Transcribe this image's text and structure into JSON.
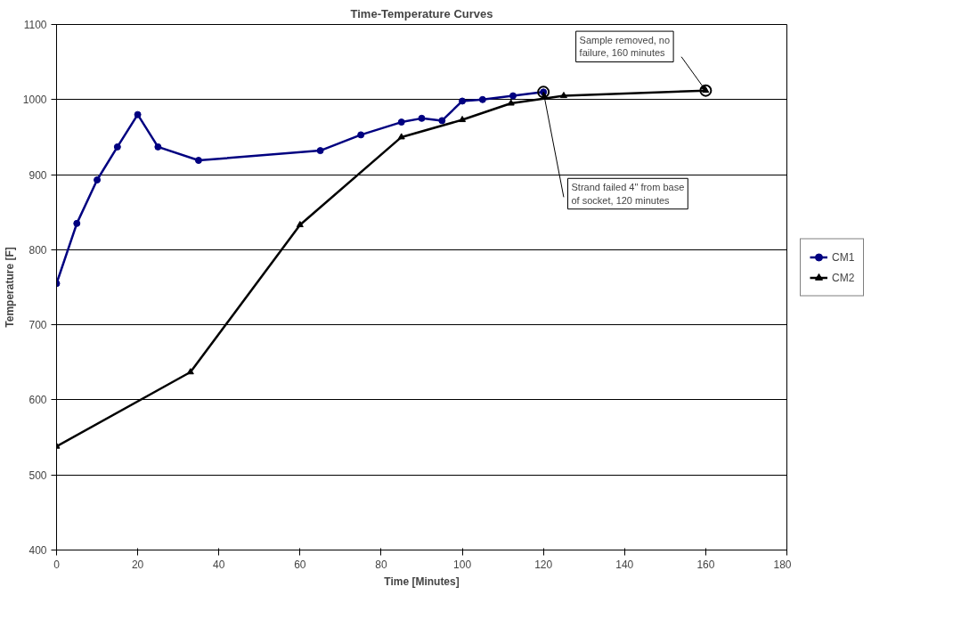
{
  "chart_data": {
    "type": "line",
    "title": "Time-Temperature Curves",
    "xlabel": "Time [Minutes]",
    "ylabel": "Temperature [F]",
    "xlim": [
      0,
      180
    ],
    "xticks": [
      0,
      20,
      40,
      60,
      80,
      100,
      120,
      140,
      160,
      180
    ],
    "ylim": [
      400,
      1100
    ],
    "yticks": [
      400,
      500,
      600,
      700,
      800,
      900,
      1000,
      1100
    ],
    "grid": "y",
    "legend": "right",
    "series": [
      {
        "name": "CM1",
        "color": "#000080",
        "marker": "circle",
        "x": [
          0,
          5,
          10,
          15,
          20,
          25,
          35,
          65,
          75,
          85,
          90,
          95,
          100,
          105,
          112.5,
          120
        ],
        "values": [
          755,
          835,
          893,
          937,
          980,
          937,
          919,
          932,
          953,
          970,
          975,
          972,
          998,
          1000,
          1005,
          1010
        ]
      },
      {
        "name": "CM2",
        "color": "#000000",
        "marker": "triangle",
        "x": [
          0,
          33,
          60,
          85,
          100,
          112,
          125,
          160
        ],
        "values": [
          538,
          637,
          833,
          950,
          973,
          995,
          1005,
          1012
        ]
      }
    ],
    "annotations": [
      {
        "text": "Sample removed, no failure, 160 minutes",
        "x": 160,
        "y": 1012
      },
      {
        "text": "Strand failed 4\" from base of socket, 120 minutes",
        "x": 120,
        "y": 1010
      }
    ]
  }
}
